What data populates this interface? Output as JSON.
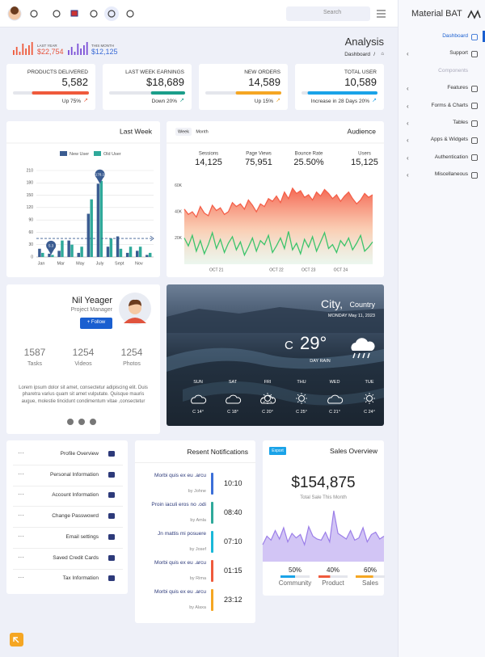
{
  "topbar": {
    "search": "Search",
    "brand": "Material BAT"
  },
  "header": {
    "last_year": {
      "label": "LAST YEAR",
      "value": "$22,754"
    },
    "this_month": {
      "label": "THIS MONTH",
      "value": "$12,125"
    },
    "title": "Analysis",
    "breadcrumb": "Dashboard",
    "separator": "/"
  },
  "stats": [
    {
      "label": "PRODUCTS DELIVERED",
      "value": "5,582",
      "footer": "Up 75%",
      "progress": 75,
      "color": "#ef5a3c"
    },
    {
      "label": "LAST WEEK EARNINGS",
      "value": "$18,689",
      "footer": "Down 20%",
      "progress": 45,
      "color": "#1b9e8a"
    },
    {
      "label": "NEW ORDERS",
      "value": "14,589",
      "footer": "Up 15%",
      "progress": 60,
      "color": "#f5a623"
    },
    {
      "label": "TOTAL USER",
      "value": "10,589",
      "footer": "Increase in 28 Days 20%",
      "progress": 92,
      "color": "#1aa3e8"
    }
  ],
  "chart_data": [
    {
      "type": "bar",
      "title": "Last Week",
      "categories": [
        "Jan",
        null,
        "Mar",
        null,
        "May",
        null,
        "July",
        null,
        "Sept",
        null,
        "Nov",
        null
      ],
      "series": [
        {
          "name": "New User",
          "color": "#3b5c91",
          "values": [
            20,
            8,
            15,
            40,
            10,
            105,
            178,
            25,
            50,
            10,
            15,
            5
          ]
        },
        {
          "name": "Old User",
          "color": "#2fa99a",
          "values": [
            10,
            5,
            40,
            30,
            25,
            140,
            185,
            45,
            20,
            25,
            25,
            10
          ]
        }
      ],
      "ylim": [
        0,
        210
      ],
      "yticks": [
        0,
        30,
        60,
        90,
        120,
        150,
        180,
        210
      ],
      "grid": true,
      "legend": "top",
      "reference_line": 45,
      "annotations": [
        {
          "value": 178.1,
          "label": "178.1"
        },
        {
          "value": 5.3,
          "label": "5.3"
        }
      ]
    },
    {
      "type": "area",
      "title": "Audience",
      "tabs": [
        "Week",
        "Month"
      ],
      "kpis": [
        {
          "label": "Sessions",
          "value": "14,125"
        },
        {
          "label": "Page Views",
          "value": "75,951"
        },
        {
          "label": "Bounce Rate",
          "value": "25.50%"
        },
        {
          "label": "Users",
          "value": "15,125"
        }
      ],
      "categories": [
        null,
        null,
        null,
        null,
        null,
        null,
        null,
        null,
        "OCT 21",
        null,
        null,
        null,
        null,
        null,
        null,
        null,
        null,
        null,
        null,
        null,
        null,
        null,
        null,
        "OCT 22",
        null,
        null,
        null,
        null,
        null,
        null,
        null,
        "OCT 23",
        null,
        null,
        null,
        null,
        null,
        null,
        null,
        "OCT 24",
        null,
        null,
        null,
        null,
        null,
        null,
        null,
        null
      ],
      "series": [
        {
          "color": "#f4604a",
          "values": [
            42000,
            38000,
            40000,
            36000,
            44000,
            39000,
            37000,
            45000,
            41000,
            43000,
            38000,
            40000,
            47000,
            44000,
            46000,
            42000,
            49000,
            45000,
            40000,
            46000,
            44000,
            50000,
            48000,
            52000,
            47000,
            55000,
            50000,
            58000,
            54000,
            56000,
            51000,
            53000,
            49000,
            55000,
            52000,
            57000,
            54000,
            50000,
            53000,
            48000,
            52000,
            55000,
            50000,
            46000,
            49000,
            54000,
            51000,
            53000
          ]
        },
        {
          "color": "#3cc46b",
          "values": [
            20000,
            14000,
            22000,
            10000,
            18000,
            8000,
            15000,
            24000,
            12000,
            19000,
            9000,
            16000,
            21000,
            11000,
            17000,
            7000,
            13000,
            20000,
            10000,
            18000,
            15000,
            22000,
            9000,
            14000,
            20000,
            12000,
            25000,
            11000,
            16000,
            8000,
            19000,
            13000,
            21000,
            10000,
            17000,
            24000,
            12000,
            15000,
            9000,
            18000,
            14000,
            20000,
            11000,
            16000,
            22000,
            10000,
            13000,
            17000
          ]
        }
      ],
      "ylim": [
        0,
        65000
      ],
      "yticks": [
        {
          "value": 20000,
          "label": "20K"
        },
        {
          "value": 40000,
          "label": "40K"
        },
        {
          "value": 60000,
          "label": "60K"
        }
      ],
      "grid": false
    },
    {
      "type": "area",
      "title": "Sales Overview",
      "button": "Export",
      "total": "$154,875",
      "subtitle": "Total Sale This Month",
      "series": [
        {
          "color": "#9b7ee8",
          "values": [
            30,
            45,
            38,
            55,
            40,
            60,
            35,
            50,
            42,
            48,
            30,
            62,
            45,
            40,
            38,
            52,
            35,
            90,
            50,
            45,
            40,
            55,
            38,
            42,
            60,
            35,
            48,
            52,
            40,
            45
          ]
        }
      ],
      "ylim": [
        0,
        100
      ],
      "breakdown": {
        "categories": [
          "Community",
          "Product",
          "Sales"
        ],
        "values": [
          50,
          40,
          60
        ],
        "value_labels": [
          "50%",
          "40%",
          "60%"
        ],
        "colors": [
          "#1aa3e8",
          "#ef5a3c",
          "#f5a623"
        ]
      }
    }
  ],
  "profile": {
    "name": "Nil Yeager",
    "role": "Project Manager",
    "button": "+ Follow",
    "stats": [
      {
        "value": "1587",
        "label": "Tasks"
      },
      {
        "value": "1254",
        "label": "Videos"
      },
      {
        "value": "1254",
        "label": "Photos"
      }
    ],
    "bio": "Lorem ipsum dolor sit amet, consectetur adipiscing elit. Duis pharetra varius quam sit amet vulputate. Quisque mauris augue, molestie tincidunt condimentum vitae ,consectetur"
  },
  "weather": {
    "city": "City,",
    "country": "Country",
    "date": "MONDAY May 11, 2023",
    "unit": "C",
    "temp": "29°",
    "condition": "DAY RAIN",
    "forecast": [
      {
        "day": "SUN",
        "temp": "C 14°"
      },
      {
        "day": "SAT",
        "temp": "C 18°"
      },
      {
        "day": "FRI",
        "temp": "C 20°"
      },
      {
        "day": "THU",
        "temp": "C 25°"
      },
      {
        "day": "WED",
        "temp": "C 21°"
      },
      {
        "day": "TUE",
        "temp": "C 24°"
      }
    ]
  },
  "settings": [
    "Profile Overview",
    "Personal Information",
    "Account Information",
    "Change Passwowrd",
    "Email settings",
    "Saved Credit Cards",
    "Tax Information"
  ],
  "notifications": {
    "title": "Resent Notifications",
    "items": [
      {
        "text": "Morbi quis ex eu .arcu",
        "by": "by Johne",
        "time": "10:10",
        "color": "#3b6fd8"
      },
      {
        "text": "Proin iaculi eros no .odi",
        "by": "by Amla",
        "time": "08:40",
        "color": "#2fa99a"
      },
      {
        "text": "Jn mattis mi posuere",
        "by": "by Josef",
        "time": "07:10",
        "color": "#1ab8d8"
      },
      {
        "text": "Morbi quis ex eu .arcu",
        "by": "by Rima",
        "time": "01:15",
        "color": "#ef5a3c"
      },
      {
        "text": "Morbi quis ex eu .arcu",
        "by": "by Alaxa",
        "time": "23:12",
        "color": "#f5a623"
      }
    ]
  },
  "sidebar": {
    "items": [
      {
        "label": "Dashboard",
        "active": true
      },
      {
        "label": "Support",
        "expandable": true
      },
      {
        "label": "Components",
        "section": true
      },
      {
        "label": "Features",
        "expandable": true
      },
      {
        "label": "Forms & Charts",
        "expandable": true
      },
      {
        "label": "Tables",
        "expandable": true
      },
      {
        "label": "Apps & Widgets",
        "expandable": true
      },
      {
        "label": "Authentication",
        "expandable": true
      },
      {
        "label": "Miscellaneous",
        "expandable": true
      }
    ]
  }
}
